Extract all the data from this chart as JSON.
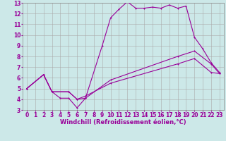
{
  "background_color": "#cce8e8",
  "line_color": "#990099",
  "grid_color": "#aaaaaa",
  "xlabel": "Windchill (Refroidissement éolien,°C)",
  "xlim": [
    -0.5,
    23.5
  ],
  "ylim": [
    3,
    13
  ],
  "xticks": [
    0,
    1,
    2,
    3,
    4,
    5,
    6,
    7,
    8,
    9,
    10,
    11,
    12,
    13,
    14,
    15,
    16,
    17,
    18,
    19,
    20,
    21,
    22,
    23
  ],
  "yticks": [
    3,
    4,
    5,
    6,
    7,
    8,
    9,
    10,
    11,
    12,
    13
  ],
  "line1_x": [
    0,
    2,
    3,
    4,
    5,
    6,
    7,
    9,
    10,
    11,
    12,
    13,
    14,
    15,
    16,
    17,
    18,
    19,
    20,
    21,
    22,
    23
  ],
  "line1_y": [
    5,
    6.3,
    4.7,
    4.1,
    4.1,
    3.2,
    4.1,
    9.0,
    11.6,
    12.4,
    13.1,
    12.5,
    12.5,
    12.6,
    12.5,
    12.8,
    12.5,
    12.7,
    9.8,
    8.7,
    7.4,
    6.5
  ],
  "line2_x": [
    0,
    2,
    3,
    5,
    6,
    7,
    10,
    18,
    20,
    22,
    23
  ],
  "line2_y": [
    5,
    6.3,
    4.7,
    4.7,
    4.0,
    4.1,
    5.8,
    8.0,
    8.5,
    7.3,
    6.4
  ],
  "line3_x": [
    0,
    2,
    3,
    5,
    6,
    7,
    10,
    18,
    20,
    22,
    23
  ],
  "line3_y": [
    5,
    6.3,
    4.7,
    4.7,
    4.0,
    4.3,
    5.5,
    7.3,
    7.8,
    6.5,
    6.4
  ],
  "tick_fontsize": 5.5,
  "label_fontsize": 6.0
}
